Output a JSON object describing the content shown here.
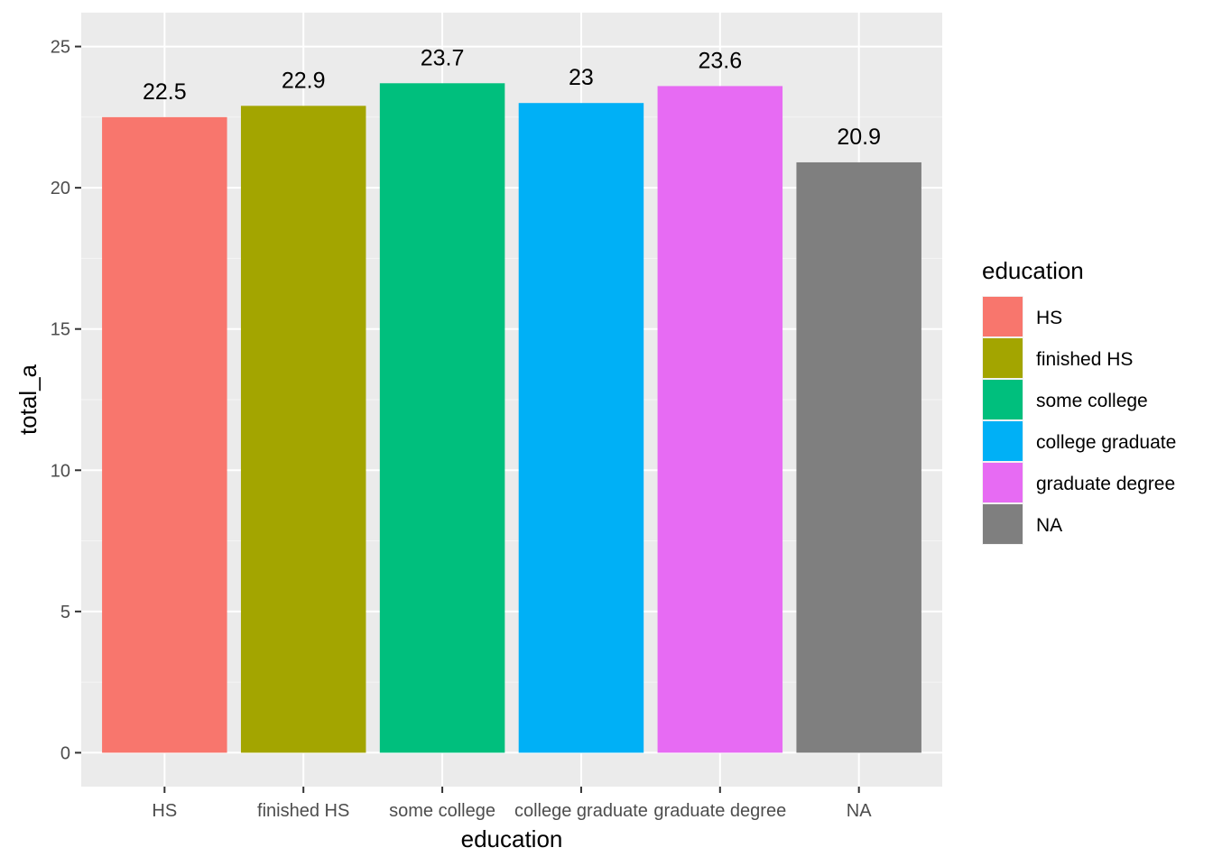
{
  "chart_data": {
    "type": "bar",
    "categories": [
      "HS",
      "finished HS",
      "some college",
      "college graduate",
      "graduate degree",
      "NA"
    ],
    "values": [
      22.5,
      22.9,
      23.7,
      23,
      23.6,
      20.9
    ],
    "data_labels": [
      "22.5",
      "22.9",
      "23.7",
      "23",
      "23.6",
      "20.9"
    ],
    "colors": [
      "#F8766D",
      "#A3A500",
      "#00BF7D",
      "#00B0F6",
      "#E76BF3",
      "#7F7F7F"
    ],
    "xlabel": "education",
    "ylabel": "total_a",
    "ylim": [
      -1.2,
      26.2
    ],
    "yticks": [
      0,
      5,
      10,
      15,
      20,
      25
    ],
    "ytick_labels": [
      "0",
      "5",
      "10",
      "15",
      "20",
      "25"
    ],
    "grid": true,
    "legend": {
      "title": "education",
      "placement": "right",
      "entries": [
        "HS",
        "finished HS",
        "some college",
        "college graduate",
        "graduate degree",
        "NA"
      ]
    },
    "theme": {
      "panel_bg": "#EBEBEB",
      "grid_major": "#FFFFFF",
      "grid_minor": "#F5F5F5",
      "tick_color": "#333333"
    }
  }
}
